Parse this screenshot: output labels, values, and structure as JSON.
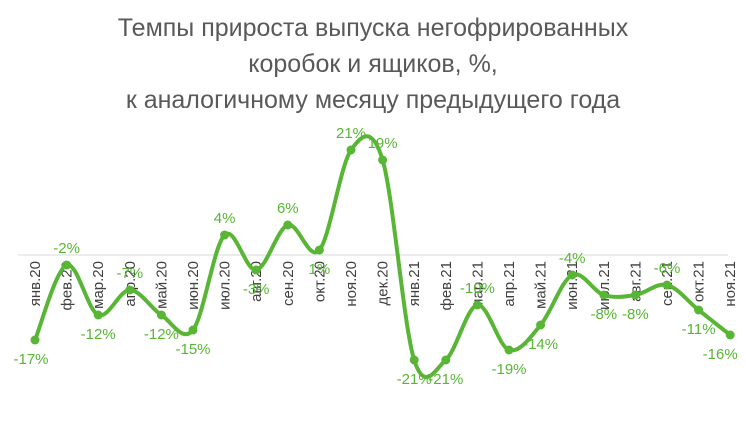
{
  "chart_data": {
    "type": "line",
    "title_lines": [
      "Темпы прироста выпуска негофрированных",
      "коробок и ящиков, %,",
      "к аналогичному месяцу предыдущего года"
    ],
    "categories": [
      "янв.20",
      "фев.20",
      "мар.20",
      "апр.20",
      "май.20",
      "июн.20",
      "июл.20",
      "авг.20",
      "сен.20",
      "окт.20",
      "ноя.20",
      "дек.20",
      "янв.21",
      "фев.21",
      "мар.21",
      "апр.21",
      "май.21",
      "июн.21",
      "июл.21",
      "авг.21",
      "сен.21",
      "окт.21",
      "ноя.21"
    ],
    "series": [
      {
        "values": [
          -17,
          -2,
          -12,
          -7,
          -12,
          -15,
          4,
          -3,
          6,
          1,
          21,
          19,
          -21,
          -21,
          -10,
          -19,
          -14,
          -4,
          -8,
          -8,
          -6,
          -11,
          -16
        ],
        "labels": [
          "-17%",
          "-2%",
          "-12%",
          "-7%",
          "-12%",
          "-15%",
          "4%",
          "-3%",
          "6%",
          "1%",
          "21%",
          "19%",
          "-21%",
          "-21%",
          "-10%",
          "-19%",
          "-14%",
          "-4%",
          "-8%",
          "-8%",
          "-6%",
          "-11%",
          "-16%"
        ]
      }
    ],
    "xlabel": "",
    "ylabel": "",
    "ylim": [
      -25,
      25
    ],
    "grid": false,
    "legend": "none",
    "colors": {
      "line": "#58b535",
      "labels": "#58b535",
      "axis": "#d9d9d9",
      "ticks": "#404040",
      "title": "#595959"
    }
  }
}
